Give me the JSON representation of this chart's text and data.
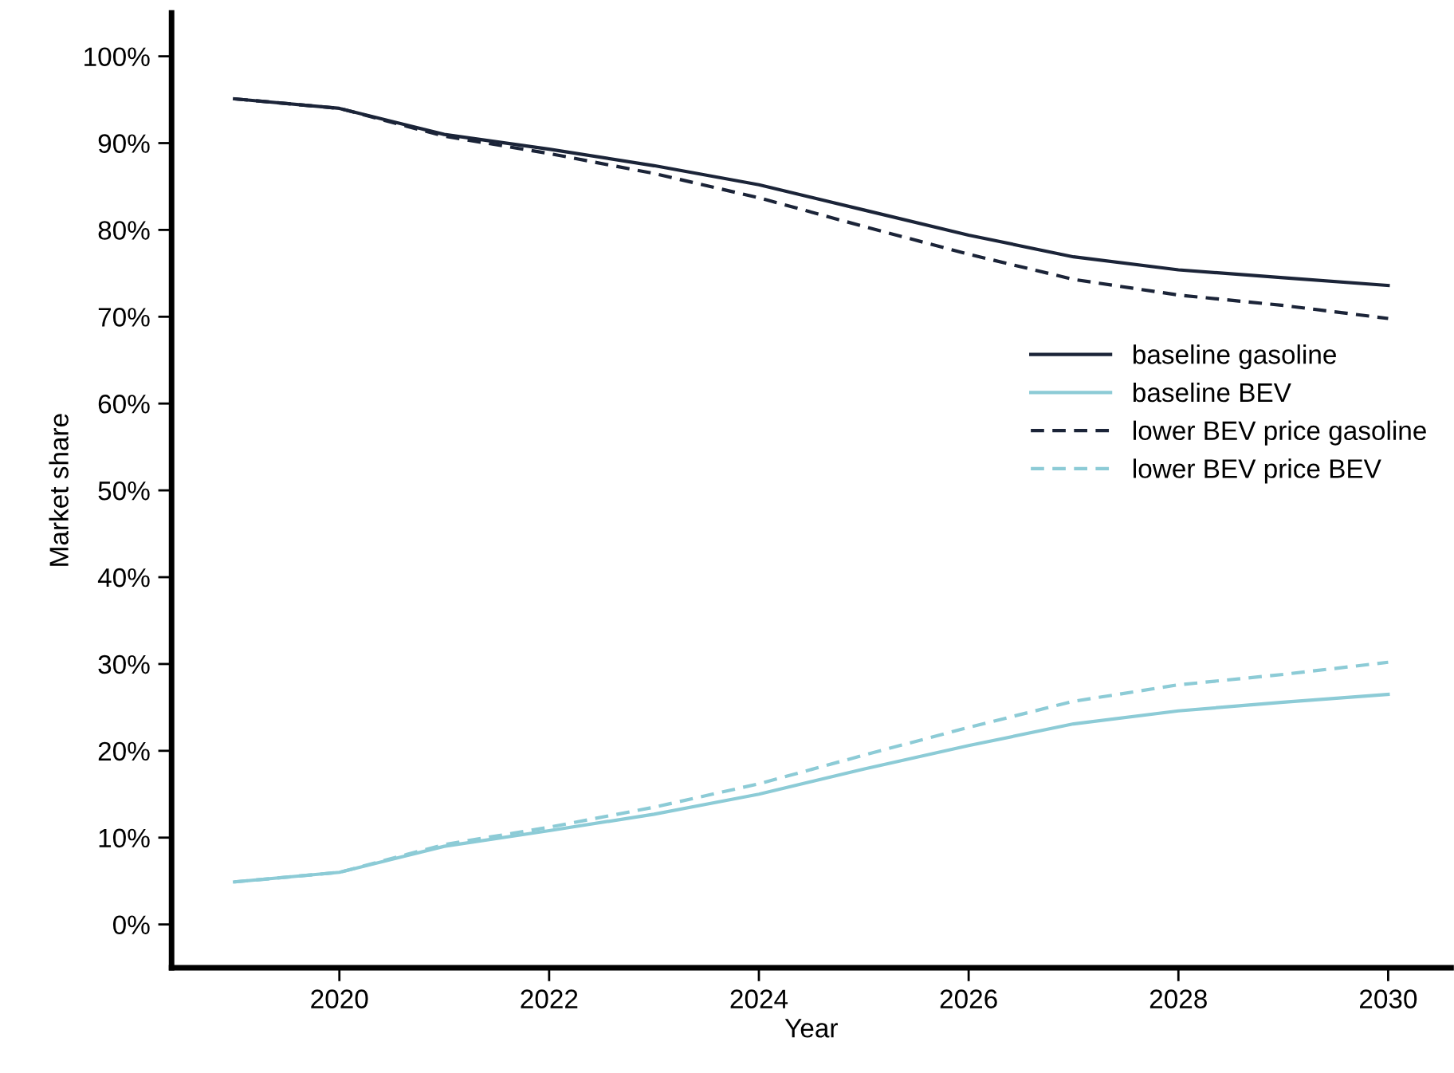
{
  "chart_data": {
    "type": "line",
    "xlabel": "Year",
    "ylabel": "Market share",
    "x": [
      2019,
      2020,
      2021,
      2022,
      2023,
      2024,
      2025,
      2026,
      2027,
      2028,
      2029,
      2030
    ],
    "series": [
      {
        "name": "baseline gasoline",
        "color": "#1b2438",
        "line_style": "solid",
        "values": [
          95.1,
          94,
          91,
          89.3,
          87.4,
          85.2,
          82.3,
          79.4,
          76.9,
          75.4,
          74.5,
          73.6
        ]
      },
      {
        "name": "baseline BEV",
        "color": "#8ccbd6",
        "line_style": "solid",
        "values": [
          4.9,
          6,
          9,
          10.8,
          12.7,
          15,
          17.9,
          20.6,
          23.1,
          24.6,
          25.6,
          26.5
        ]
      },
      {
        "name": "lower BEV price gasoline",
        "color": "#1b2438",
        "line_style": "dashed",
        "values": [
          95.1,
          94,
          90.8,
          88.8,
          86.5,
          83.7,
          80.4,
          77.2,
          74.3,
          72.5,
          71.3,
          69.8
        ]
      },
      {
        "name": "lower BEV price BEV",
        "color": "#8ccbd6",
        "line_style": "dashed",
        "values": [
          4.9,
          6,
          9.2,
          11.2,
          13.5,
          16.2,
          19.5,
          22.7,
          25.7,
          27.6,
          28.8,
          30.2
        ]
      }
    ],
    "xlim": [
      2018.4,
      2030.6
    ],
    "xticks": [
      2020,
      2022,
      2024,
      2026,
      2028,
      2030
    ],
    "ylim": [
      -5,
      105
    ],
    "yticks": [
      {
        "value": 0,
        "label": "0%"
      },
      {
        "value": 10,
        "label": "10%"
      },
      {
        "value": 20,
        "label": "20%"
      },
      {
        "value": 30,
        "label": "30%"
      },
      {
        "value": 40,
        "label": "40%"
      },
      {
        "value": 50,
        "label": "50%"
      },
      {
        "value": 60,
        "label": "60%"
      },
      {
        "value": 70,
        "label": "70%"
      },
      {
        "value": 80,
        "label": "80%"
      },
      {
        "value": 90,
        "label": "90%"
      },
      {
        "value": 100,
        "label": "100%"
      }
    ],
    "grid": false,
    "legend": "right",
    "marker": "none"
  }
}
